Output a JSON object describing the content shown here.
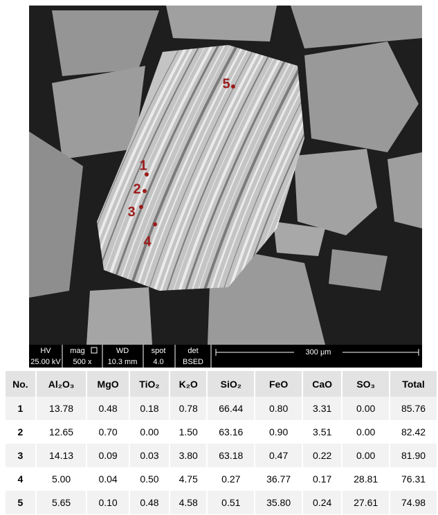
{
  "image": {
    "points": [
      "1",
      "2",
      "3",
      "4",
      "5"
    ],
    "info_bar": {
      "labels": [
        "HV",
        "mag",
        "WD",
        "spot",
        "det"
      ],
      "values": [
        "25.00 kV",
        "500 x",
        "10.3 mm",
        "4.0",
        "BSED"
      ],
      "scale_bar": "300 μm"
    }
  },
  "table": {
    "header": [
      "No.",
      "Al₂O₃",
      "MgO",
      "TiO₂",
      "K₂O",
      "SiO₂",
      "FeO",
      "CaO",
      "SO₃",
      "Total"
    ],
    "rows": [
      [
        "1",
        "13.78",
        "0.48",
        "0.18",
        "0.78",
        "66.44",
        "0.80",
        "3.31",
        "0.00",
        "85.76"
      ],
      [
        "2",
        "12.65",
        "0.70",
        "0.00",
        "1.50",
        "63.16",
        "0.90",
        "3.51",
        "0.00",
        "82.42"
      ],
      [
        "3",
        "14.13",
        "0.09",
        "0.03",
        "3.80",
        "63.18",
        "0.47",
        "0.22",
        "0.00",
        "81.90"
      ],
      [
        "4",
        "5.00",
        "0.04",
        "0.50",
        "4.75",
        "0.27",
        "36.77",
        "0.17",
        "28.81",
        "76.31"
      ],
      [
        "5",
        "5.65",
        "0.10",
        "0.48",
        "4.58",
        "0.51",
        "35.80",
        "0.24",
        "27.61",
        "74.98"
      ]
    ]
  }
}
